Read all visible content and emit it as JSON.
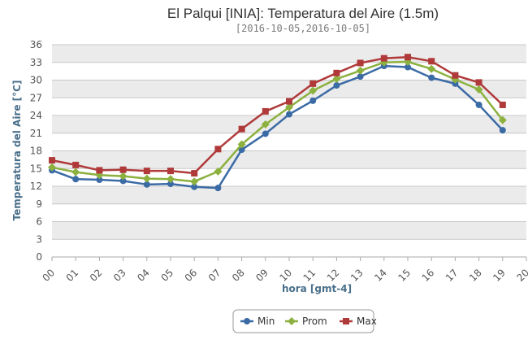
{
  "chart_data": {
    "type": "line",
    "title": "El Palqui [INIA]: Temperatura del Aire (1.5m)",
    "subtitle": "[2016-10-05,2016-10-05]",
    "xlabel": "hora [gmt-4]",
    "ylabel": "Temperatura del Aire [°C]",
    "ylim": [
      0,
      36
    ],
    "yticks": [
      0,
      3,
      6,
      9,
      12,
      15,
      18,
      21,
      24,
      27,
      30,
      33,
      36
    ],
    "xlim": [
      0,
      20
    ],
    "xticks": [
      "00",
      "01",
      "02",
      "03",
      "04",
      "05",
      "06",
      "07",
      "08",
      "09",
      "10",
      "11",
      "12",
      "13",
      "14",
      "15",
      "16",
      "17",
      "18",
      "19",
      "20"
    ],
    "x": [
      0,
      1,
      2,
      3,
      4,
      5,
      6,
      7,
      8,
      9,
      10,
      11,
      12,
      13,
      14,
      15,
      16,
      17,
      18,
      19
    ],
    "grid": true,
    "legend_position": "bottom-center",
    "series": [
      {
        "name": "Min",
        "color": "#3b6ba5",
        "marker": "circle",
        "values": [
          14.7,
          13.2,
          13.1,
          12.9,
          12.3,
          12.4,
          11.9,
          11.7,
          18.2,
          20.9,
          24.2,
          26.5,
          29.1,
          30.6,
          32.4,
          32.2,
          30.4,
          29.4,
          25.8,
          21.5
        ]
      },
      {
        "name": "Prom",
        "color": "#8cb13f",
        "marker": "diamond",
        "values": [
          15.2,
          14.4,
          13.9,
          13.7,
          13.3,
          13.2,
          12.8,
          14.5,
          19.1,
          22.5,
          25.4,
          28.2,
          30.2,
          31.6,
          33.0,
          33.1,
          31.9,
          30.1,
          28.4,
          23.2
        ]
      },
      {
        "name": "Max",
        "color": "#b03a3a",
        "marker": "square",
        "values": [
          16.4,
          15.6,
          14.7,
          14.8,
          14.6,
          14.6,
          14.2,
          18.3,
          21.7,
          24.7,
          26.4,
          29.4,
          31.2,
          32.9,
          33.7,
          33.9,
          33.2,
          30.8,
          29.6,
          25.8
        ]
      }
    ]
  }
}
